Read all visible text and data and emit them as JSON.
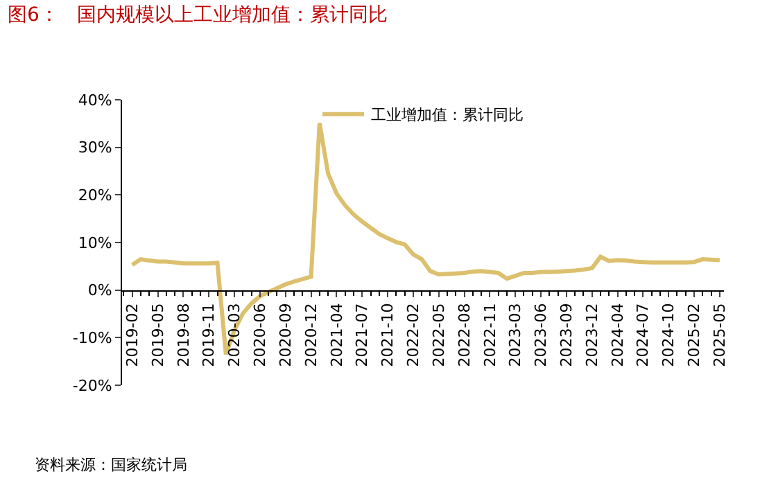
{
  "chart_data": {
    "type": "line",
    "title": "图6：   国内规模以上工业增加值：累计同比",
    "annotations": [
      "资料来源：国家统计局"
    ],
    "categories": [
      "2019-02",
      null,
      null,
      "2019-05",
      null,
      null,
      "2019-08",
      null,
      null,
      "2019-11",
      null,
      null,
      "2020-03",
      null,
      null,
      "2020-06",
      null,
      null,
      "2020-09",
      null,
      null,
      "2020-12",
      null,
      null,
      "2021-04",
      null,
      null,
      "2021-07",
      null,
      null,
      "2021-10",
      null,
      null,
      "2022-02",
      null,
      null,
      "2022-05",
      null,
      null,
      "2022-08",
      null,
      null,
      "2022-11",
      null,
      null,
      "2023-03",
      null,
      null,
      "2023-06",
      null,
      null,
      "2023-09",
      null,
      null,
      "2023-12",
      null,
      null,
      "2024-04",
      null,
      null,
      "2024-07",
      null,
      null,
      "2024-10",
      null,
      null,
      "2025-02",
      null,
      null,
      "2025-05"
    ],
    "series": [
      {
        "name": "工业增加值：累计同比",
        "color": "#dcc06e",
        "values": [
          5.3,
          6.5,
          6.2,
          6.0,
          6.0,
          5.8,
          5.6,
          5.6,
          5.6,
          5.6,
          5.7,
          -13.5,
          -8.4,
          -4.9,
          -2.8,
          -1.3,
          -0.4,
          0.4,
          1.2,
          1.8,
          2.3,
          2.8,
          35.1,
          24.5,
          20.3,
          17.8,
          15.9,
          14.4,
          13.1,
          11.8,
          10.9,
          10.1,
          9.6,
          7.5,
          6.5,
          4.0,
          3.3,
          3.4,
          3.5,
          3.6,
          3.9,
          4.0,
          3.8,
          3.6,
          2.4,
          3.0,
          3.6,
          3.6,
          3.8,
          3.8,
          3.9,
          4.0,
          4.1,
          4.3,
          4.6,
          7.0,
          6.1,
          6.3,
          6.2,
          6.0,
          5.9,
          5.8,
          5.8,
          5.8,
          5.8,
          5.8,
          5.9,
          6.5,
          6.4,
          6.3
        ]
      }
    ],
    "ylim": [
      -20,
      40
    ],
    "yticks": [
      {
        "value": -20,
        "label": "-20%"
      },
      {
        "value": -10,
        "label": "-10%"
      },
      {
        "value": 0,
        "label": "0%"
      },
      {
        "value": 10,
        "label": "10%"
      },
      {
        "value": 20,
        "label": "20%"
      },
      {
        "value": 30,
        "label": "30%"
      },
      {
        "value": 40,
        "label": "40%"
      }
    ],
    "legend": "top",
    "marker": "none",
    "line_style": "solid"
  }
}
